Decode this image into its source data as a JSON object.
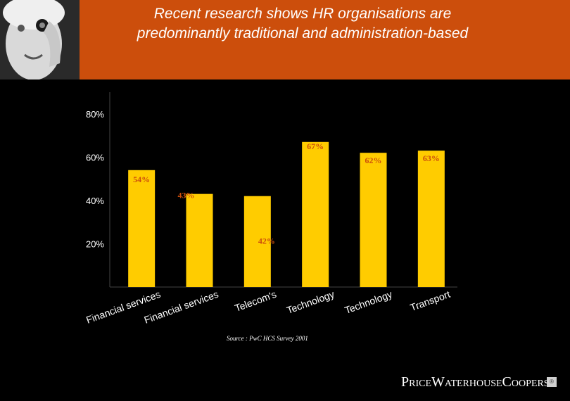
{
  "header": {
    "title": "Recent research shows HR organisations are predominantly traditional and administration-based"
  },
  "chart_data": {
    "type": "bar",
    "categories": [
      "Financial services",
      "Financial services",
      "Telecom's",
      "Technology",
      "Technology",
      "Transport"
    ],
    "values": [
      54,
      43,
      42,
      67,
      62,
      63
    ],
    "ylim": [
      0,
      90
    ],
    "yticks": [
      20,
      40,
      60,
      80
    ],
    "ytick_labels": [
      "20%",
      "40%",
      "60%",
      "80%"
    ],
    "data_labels": [
      "54%",
      "43%",
      "42%",
      "67%",
      "62%",
      "63%"
    ],
    "grid": false,
    "bar_color": "#ffcc00",
    "label_color": "#cc4e0c"
  },
  "source": "Source : PwC HCS Survey 2001",
  "logo": "PriceWaterhouseCoopers",
  "colors": {
    "background": "#000000",
    "band": "#cc4e0c",
    "bar": "#ffcc00",
    "text": "#ffffff"
  }
}
